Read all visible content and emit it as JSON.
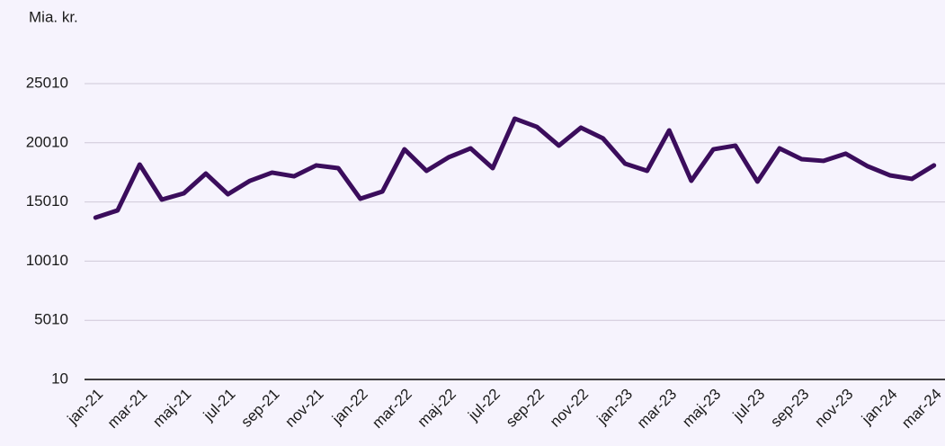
{
  "chart_data": {
    "type": "line",
    "y_axis_label": "Mia. kr.",
    "categories": [
      "jan-21",
      null,
      "mar-21",
      null,
      "maj-21",
      null,
      "jul-21",
      null,
      "sep-21",
      null,
      "nov-21",
      null,
      "jan-22",
      null,
      "mar-22",
      null,
      "maj-22",
      null,
      "jul-22",
      null,
      "sep-22",
      null,
      "nov-22",
      null,
      "jan-23",
      null,
      "mar-23",
      null,
      "maj-23",
      null,
      "jul-23",
      null,
      "sep-23",
      null,
      "nov-23",
      null,
      "jan-24",
      null,
      "mar-24"
    ],
    "series": [
      {
        "color": "#3b0d5c",
        "values": [
          13690,
          14300,
          18170,
          15210,
          15740,
          17410,
          15660,
          16800,
          17490,
          17180,
          18100,
          17870,
          15280,
          15890,
          19460,
          17640,
          18780,
          19540,
          17870,
          22050,
          21360,
          19770,
          21290,
          20380,
          18250,
          17640,
          21060,
          16800,
          19460,
          19770,
          16730,
          19540,
          18630,
          18480,
          19090,
          18020,
          17260,
          16960,
          18100
        ]
      }
    ],
    "ylim": [
      10,
      25010
    ],
    "yticks": [
      10,
      5010,
      10010,
      15010,
      20010,
      25010
    ],
    "grid": true
  }
}
